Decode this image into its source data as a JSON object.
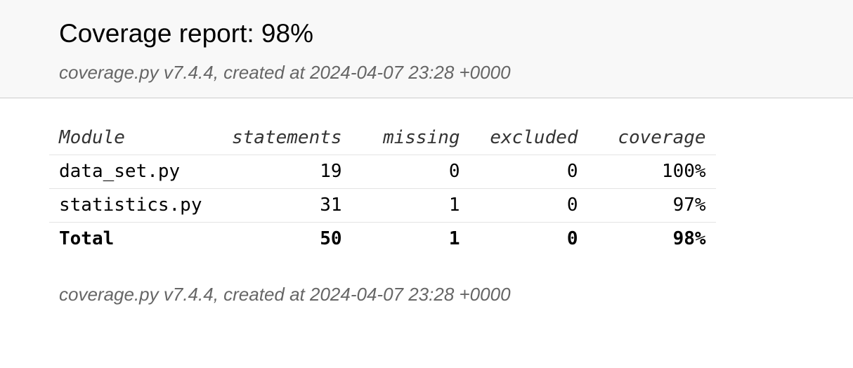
{
  "header": {
    "title": "Coverage report: 98%",
    "subtitle": "coverage.py v7.4.4, created at 2024-04-07 23:28 +0000"
  },
  "table": {
    "columns": {
      "module": "Module",
      "statements": "statements",
      "missing": "missing",
      "excluded": "excluded",
      "coverage": "coverage"
    },
    "rows": [
      {
        "module": "data_set.py",
        "statements": "19",
        "missing": "0",
        "excluded": "0",
        "coverage": "100%"
      },
      {
        "module": "statistics.py",
        "statements": "31",
        "missing": "1",
        "excluded": "0",
        "coverage": "97%"
      }
    ],
    "total": {
      "module": "Total",
      "statements": "50",
      "missing": "1",
      "excluded": "0",
      "coverage": "98%"
    }
  },
  "footer": {
    "text": "coverage.py v7.4.4, created at 2024-04-07 23:28 +0000"
  }
}
